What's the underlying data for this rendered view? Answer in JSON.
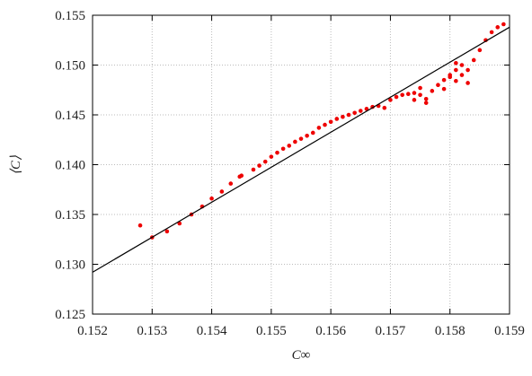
{
  "chart_data": {
    "type": "scatter",
    "x_label": "C∞",
    "y_label": "⟨C⟩",
    "xlim": [
      0.152,
      0.159
    ],
    "ylim": [
      0.125,
      0.155
    ],
    "xticks": [
      0.152,
      0.153,
      0.154,
      0.155,
      0.156,
      0.157,
      0.158,
      0.159
    ],
    "yticks": [
      0.125,
      {
        "value": 0.13,
        "label": "0.130"
      },
      0.135,
      {
        "value": 0.14,
        "label": "0.140"
      },
      0.145,
      {
        "value": 0.15,
        "label": "0.150"
      },
      0.155
    ],
    "grid": true,
    "series": [
      {
        "color": "#ee0000",
        "style": "points",
        "x": [
          0.1528,
          0.153,
          0.15325,
          0.15346,
          0.15366,
          0.15384,
          0.154,
          0.15417,
          0.15432,
          0.15447,
          0.1545,
          0.1547,
          0.1548,
          0.1549,
          0.155,
          0.1551,
          0.1552,
          0.1553,
          0.1554,
          0.1555,
          0.1556,
          0.1557,
          0.1558,
          0.1559,
          0.156,
          0.1561,
          0.1562,
          0.1563,
          0.1564,
          0.1565,
          0.1566,
          0.1567,
          0.1568,
          0.1569,
          0.157,
          0.1571,
          0.1572,
          0.1573,
          0.1574,
          0.1575,
          0.1576,
          0.1577,
          0.1578,
          0.1579,
          0.158,
          0.1581,
          0.1579,
          0.158,
          0.1581,
          0.1582,
          0.1581,
          0.1582,
          0.1583,
          0.1583,
          0.1584,
          0.1585,
          0.1586,
          0.1587,
          0.1588,
          0.1589,
          0.1575,
          0.1576,
          0.1574
        ],
        "values": [
          0.1339,
          0.1327,
          0.1333,
          0.1341,
          0.135,
          0.1358,
          0.1366,
          0.1373,
          0.1381,
          0.1388,
          0.1389,
          0.1395,
          0.1399,
          0.1403,
          0.1408,
          0.1412,
          0.1416,
          0.1419,
          0.1423,
          0.1426,
          0.1429,
          0.1432,
          0.1437,
          0.144,
          0.1443,
          0.1446,
          0.1448,
          0.145,
          0.1452,
          0.1454,
          0.1456,
          0.1458,
          0.1459,
          0.1457,
          0.1465,
          0.1468,
          0.147,
          0.1471,
          0.1472,
          0.147,
          0.1466,
          0.1474,
          0.148,
          0.1485,
          0.1488,
          0.1484,
          0.1476,
          0.149,
          0.1495,
          0.15,
          0.1502,
          0.149,
          0.1482,
          0.1495,
          0.1505,
          0.1515,
          0.1525,
          0.1533,
          0.1538,
          0.1541,
          0.1477,
          0.1462,
          0.1465
        ]
      },
      {
        "color": "#000000",
        "style": "line",
        "x": [
          0.152,
          0.159
        ],
        "values": [
          0.1292,
          0.1538
        ]
      }
    ]
  }
}
